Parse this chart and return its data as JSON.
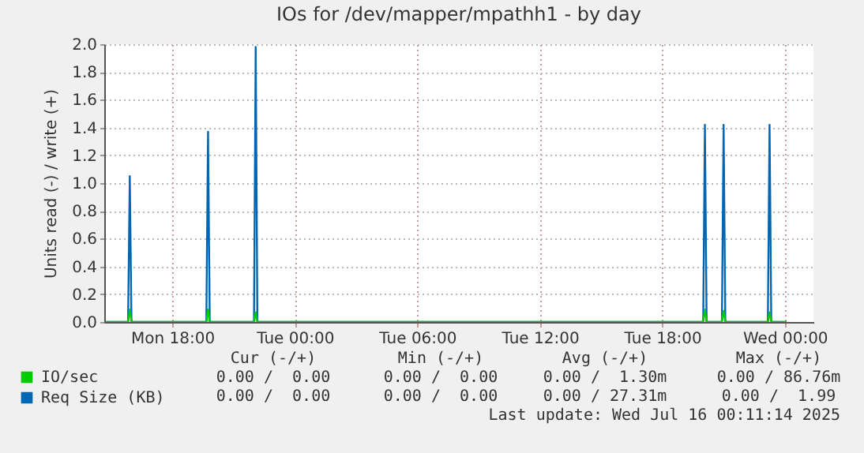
{
  "chart_data": {
    "type": "line",
    "title": "IOs for /dev/mapper/mpathh1 - by day",
    "ylabel": "Units read (-) / write (+)",
    "x": [
      "2025-07-14T14:45",
      "2025-07-14T15:50",
      "2025-07-14T15:55",
      "2025-07-14T16:00",
      "2025-07-14T19:40",
      "2025-07-14T19:45",
      "2025-07-14T19:50",
      "2025-07-14T22:00",
      "2025-07-14T22:05",
      "2025-07-14T22:10",
      "2025-07-15T20:00",
      "2025-07-15T20:05",
      "2025-07-15T20:10",
      "2025-07-15T20:55",
      "2025-07-15T21:00",
      "2025-07-15T21:05",
      "2025-07-15T23:10",
      "2025-07-15T23:15",
      "2025-07-15T23:20",
      "2025-07-16T00:05"
    ],
    "series": [
      {
        "name": "Req Size (KB)",
        "color": "#0066b3",
        "values": [
          0,
          0,
          1.05,
          0,
          0,
          1.37,
          0,
          0,
          1.98,
          0,
          0,
          1.42,
          0,
          0,
          1.42,
          0,
          0,
          1.42,
          0,
          0
        ]
      },
      {
        "name": "IO/sec",
        "color": "#00cc00",
        "values": [
          0,
          0,
          0.09,
          0,
          0,
          0.09,
          0,
          0,
          0.07,
          0,
          0,
          0.09,
          0,
          0,
          0.08,
          0,
          0,
          0.07,
          0,
          0
        ]
      }
    ],
    "xlim": [
      "2025-07-14T14:40",
      "2025-07-16T01:24"
    ],
    "xticks": [
      {
        "value": "2025-07-14T18:00",
        "label": "Mon 18:00"
      },
      {
        "value": "2025-07-15T00:00",
        "label": "Tue 00:00"
      },
      {
        "value": "2025-07-15T06:00",
        "label": "Tue 06:00"
      },
      {
        "value": "2025-07-15T12:00",
        "label": "Tue 12:00"
      },
      {
        "value": "2025-07-15T18:00",
        "label": "Tue 18:00"
      },
      {
        "value": "2025-07-16T00:00",
        "label": "Wed 00:00"
      }
    ],
    "ylim": [
      0,
      2
    ],
    "yticks": [
      {
        "value": 0,
        "label": "0.0"
      },
      {
        "value": 0.2,
        "label": "0.2"
      },
      {
        "value": 0.4,
        "label": "0.4"
      },
      {
        "value": 0.6,
        "label": "0.6"
      },
      {
        "value": 0.8,
        "label": "0.8"
      },
      {
        "value": 1,
        "label": "1.0"
      },
      {
        "value": 1.2,
        "label": "1.2"
      },
      {
        "value": 1.4,
        "label": "1.4"
      },
      {
        "value": 1.6,
        "label": "1.6"
      },
      {
        "value": 1.8,
        "label": "1.8"
      },
      {
        "value": 2,
        "label": "2.0"
      }
    ],
    "grid": true,
    "legend": "bottom left",
    "marker": "none",
    "line_style": "solid",
    "annotations": [
      "Cur (-/+)",
      "Min (-/+)",
      "Avg (-/+)",
      "Max (-/+)",
      "0.00 /  0.00",
      "0.00 /  0.00",
      "0.00 /  1.30m",
      "0.00 / 86.76m",
      "0.00 /  0.00",
      "0.00 /  0.00",
      "0.00 / 27.31m",
      "0.00 /  1.99",
      "Last update: Wed Jul 16 00:11:14 2025"
    ]
  }
}
